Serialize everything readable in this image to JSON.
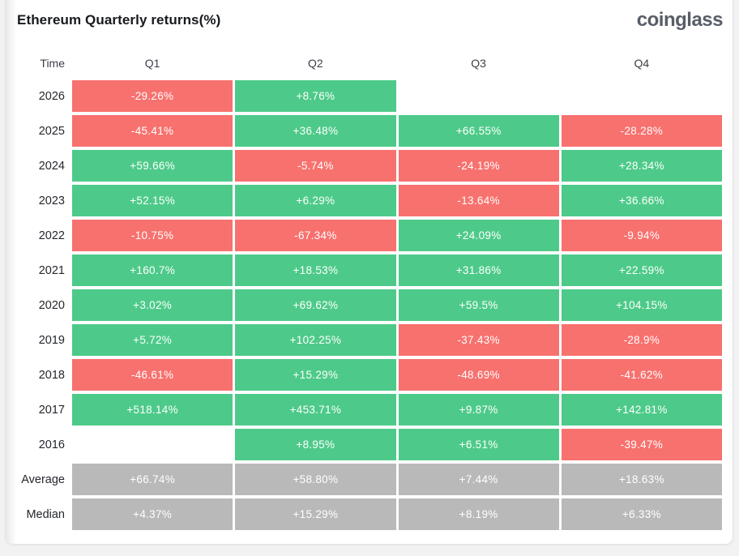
{
  "header": {
    "title": "Ethereum Quarterly returns(%)",
    "brand": "coinglass"
  },
  "chart_data": {
    "type": "heatmap",
    "title": "Ethereum Quarterly returns(%)",
    "unit": "%",
    "columns": [
      "Time",
      "Q1",
      "Q2",
      "Q3",
      "Q4"
    ],
    "rows": [
      {
        "label": "2026",
        "kind": "year",
        "values": [
          "-29.26%",
          "+8.76%",
          null,
          null
        ]
      },
      {
        "label": "2025",
        "kind": "year",
        "values": [
          "-45.41%",
          "+36.48%",
          "+66.55%",
          "-28.28%"
        ]
      },
      {
        "label": "2024",
        "kind": "year",
        "values": [
          "+59.66%",
          "-5.74%",
          "-24.19%",
          "+28.34%"
        ]
      },
      {
        "label": "2023",
        "kind": "year",
        "values": [
          "+52.15%",
          "+6.29%",
          "-13.64%",
          "+36.66%"
        ]
      },
      {
        "label": "2022",
        "kind": "year",
        "values": [
          "-10.75%",
          "-67.34%",
          "+24.09%",
          "-9.94%"
        ]
      },
      {
        "label": "2021",
        "kind": "year",
        "values": [
          "+160.7%",
          "+18.53%",
          "+31.86%",
          "+22.59%"
        ]
      },
      {
        "label": "2020",
        "kind": "year",
        "values": [
          "+3.02%",
          "+69.62%",
          "+59.5%",
          "+104.15%"
        ]
      },
      {
        "label": "2019",
        "kind": "year",
        "values": [
          "+5.72%",
          "+102.25%",
          "-37.43%",
          "-28.9%"
        ]
      },
      {
        "label": "2018",
        "kind": "year",
        "values": [
          "-46.61%",
          "+15.29%",
          "-48.69%",
          "-41.62%"
        ]
      },
      {
        "label": "2017",
        "kind": "year",
        "values": [
          "+518.14%",
          "+453.71%",
          "+9.87%",
          "+142.81%"
        ]
      },
      {
        "label": "2016",
        "kind": "year",
        "values": [
          null,
          "+8.95%",
          "+6.51%",
          "-39.47%"
        ]
      },
      {
        "label": "Average",
        "kind": "summary",
        "values": [
          "+66.74%",
          "+58.80%",
          "+7.44%",
          "+18.63%"
        ]
      },
      {
        "label": "Median",
        "kind": "summary",
        "values": [
          "+4.37%",
          "+15.29%",
          "+8.19%",
          "+6.33%"
        ]
      }
    ],
    "colors": {
      "positive": "#4dca89",
      "negative": "#f7716e",
      "summary": "#b9b9b9"
    }
  }
}
